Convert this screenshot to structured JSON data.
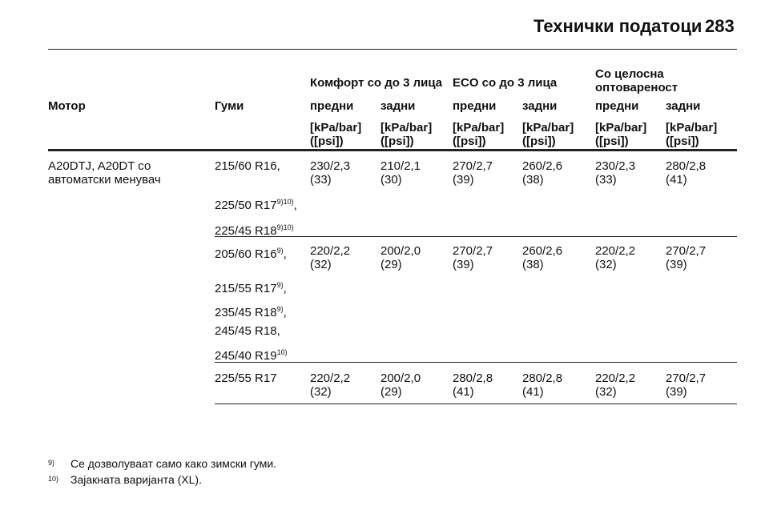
{
  "header": {
    "title": "Технички податоци",
    "page": "283"
  },
  "table": {
    "engine_header": "Мотор",
    "tyres_header": "Гуми",
    "groups": [
      [
        "Комфорт со до 3 лица"
      ],
      [
        "ECO со до 3 лица"
      ],
      [
        "Со целосна",
        "оптовареност"
      ]
    ],
    "axles": [
      "предни",
      "задни",
      "предни",
      "задни",
      "предни",
      "задни"
    ],
    "units": [
      [
        "[kPa/bar]",
        "([psi])"
      ],
      [
        "[kPa/bar]",
        "([psi])"
      ],
      [
        "[kPa/bar]",
        "([psi])"
      ],
      [
        "[kPa/bar]",
        "([psi])"
      ],
      [
        "[kPa/bar]",
        "([psi])"
      ],
      [
        "[kPa/bar]",
        "([psi])"
      ]
    ],
    "engine": [
      "A20DTJ, A20DT со",
      "автоматски менувач"
    ],
    "rows": [
      {
        "tyres": [
          {
            "text": "215/60 R16,"
          },
          {
            "text": "225/50 R17",
            "sup": "9)10)",
            "after": ","
          },
          {
            "text": "225/45 R18",
            "sup": "9)10)"
          }
        ],
        "values": [
          [
            "230/2,3",
            "(33)"
          ],
          [
            "210/2,1",
            "(30)"
          ],
          [
            "270/2,7",
            "(39)"
          ],
          [
            "260/2,6",
            "(38)"
          ],
          [
            "230/2,3",
            "(33)"
          ],
          [
            "280/2,8",
            "(41)"
          ]
        ]
      },
      {
        "tyres": [
          {
            "text": "205/60 R16",
            "sup": "9)",
            "after": ","
          },
          {
            "text": "215/55 R17",
            "sup": "9)",
            "after": ","
          },
          {
            "text": "235/45 R18",
            "sup": "9)",
            "after": ","
          },
          {
            "text": "245/45 R18,"
          },
          {
            "text": "245/40 R19",
            "sup": "10)"
          }
        ],
        "values": [
          [
            "220/2,2",
            "(32)"
          ],
          [
            "200/2,0",
            "(29)"
          ],
          [
            "270/2,7",
            "(39)"
          ],
          [
            "260/2,6",
            "(38)"
          ],
          [
            "220/2,2",
            "(32)"
          ],
          [
            "270/2,7",
            "(39)"
          ]
        ]
      },
      {
        "tyres": [
          {
            "text": "225/55 R17"
          }
        ],
        "values": [
          [
            "220/2,2",
            "(32)"
          ],
          [
            "200/2,0",
            "(29)"
          ],
          [
            "280/2,8",
            "(41)"
          ],
          [
            "280/2,8",
            "(41)"
          ],
          [
            "220/2,2",
            "(32)"
          ],
          [
            "270/2,7",
            "(39)"
          ]
        ]
      }
    ]
  },
  "footnotes": [
    {
      "mark": "9)",
      "text": "Се дозволуваат само како зимски гуми."
    },
    {
      "mark": "10)",
      "text": "Зајакната варијанта (XL)."
    }
  ]
}
